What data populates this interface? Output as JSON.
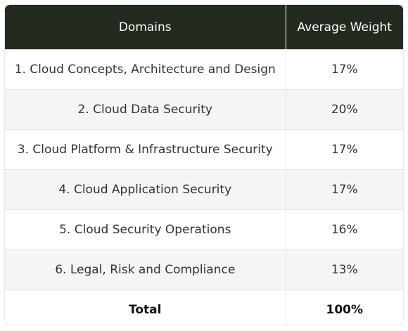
{
  "table": {
    "headers": [
      "Domains",
      "Average Weight"
    ],
    "rows": [
      {
        "domain": "1. Cloud Concepts, Architecture and Design",
        "weight": "17%"
      },
      {
        "domain": "2. Cloud Data Security",
        "weight": "20%"
      },
      {
        "domain": "3. Cloud Platform & Infrastructure Security",
        "weight": "17%"
      },
      {
        "domain": "4. Cloud Application Security",
        "weight": "17%"
      },
      {
        "domain": "5. Cloud Security Operations",
        "weight": "16%"
      },
      {
        "domain": "6. Legal, Risk and Compliance",
        "weight": "13%"
      }
    ],
    "total": {
      "label": "Total",
      "weight": "100%"
    }
  },
  "colors": {
    "header_bg": "#232a1f",
    "header_text": "#ffffff",
    "row_alt_bg": "#f5f5f5"
  }
}
